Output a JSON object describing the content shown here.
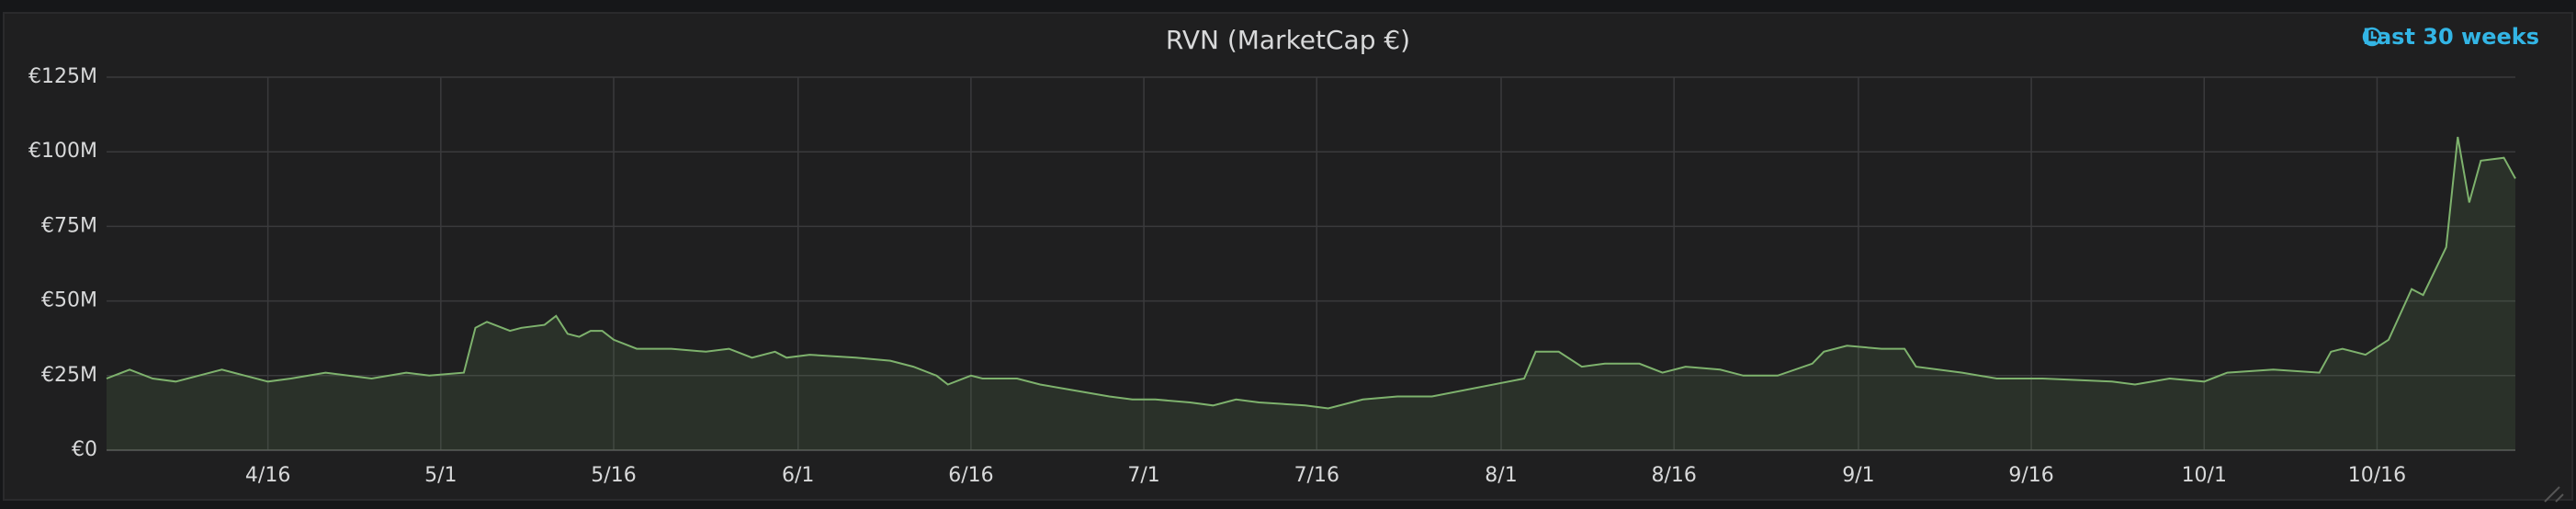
{
  "chart_data": {
    "type": "line",
    "title": "RVN (MarketCap €)",
    "time_range": "Last 30 weeks",
    "x": [
      "4/2",
      "4/4",
      "4/6",
      "4/8",
      "4/10",
      "4/12",
      "4/14",
      "4/16",
      "4/18",
      "4/21",
      "4/25",
      "4/28",
      "4/30",
      "5/3",
      "5/4",
      "5/5",
      "5/7",
      "5/8",
      "5/10",
      "5/11",
      "5/12",
      "5/13",
      "5/14",
      "5/15",
      "5/16",
      "5/18",
      "5/21",
      "5/24",
      "5/26",
      "5/28",
      "5/30",
      "5/31",
      "6/2",
      "6/6",
      "6/9",
      "6/11",
      "6/13",
      "6/14",
      "6/16",
      "6/17",
      "6/20",
      "6/22",
      "6/25",
      "6/28",
      "6/30",
      "7/2",
      "7/5",
      "7/7",
      "7/9",
      "7/11",
      "7/15",
      "7/17",
      "7/20",
      "7/23",
      "7/26",
      "8/3",
      "8/4",
      "8/6",
      "8/8",
      "8/10",
      "8/13",
      "8/15",
      "8/17",
      "8/20",
      "8/22",
      "8/25",
      "8/28",
      "8/29",
      "8/31",
      "9/3",
      "9/5",
      "9/6",
      "9/10",
      "9/13",
      "9/17",
      "9/23",
      "9/25",
      "9/28",
      "10/1",
      "10/3",
      "10/7",
      "10/11",
      "10/12",
      "10/13",
      "10/15",
      "10/17",
      "10/19",
      "10/20",
      "10/22",
      "10/23",
      "10/24",
      "10/25",
      "10/27",
      "10/28"
    ],
    "series": [
      {
        "name": "RVN",
        "color": "#7eb26d",
        "values": [
          24000000,
          27000000,
          24000000,
          23000000,
          25000000,
          27000000,
          25000000,
          23000000,
          24000000,
          26000000,
          24000000,
          26000000,
          25000000,
          26000000,
          41000000,
          43000000,
          40000000,
          41000000,
          42000000,
          45000000,
          39000000,
          38000000,
          40000000,
          40000000,
          37000000,
          34000000,
          34000000,
          33000000,
          34000000,
          31000000,
          33000000,
          31000000,
          32000000,
          31000000,
          30000000,
          28000000,
          25000000,
          22000000,
          25000000,
          24000000,
          24000000,
          22000000,
          20000000,
          18000000,
          17000000,
          17000000,
          16000000,
          15000000,
          17000000,
          16000000,
          15000000,
          14000000,
          17000000,
          18000000,
          18000000,
          24000000,
          33000000,
          33000000,
          28000000,
          29000000,
          29000000,
          26000000,
          28000000,
          27000000,
          25000000,
          25000000,
          29000000,
          33000000,
          35000000,
          34000000,
          34000000,
          28000000,
          26000000,
          24000000,
          24000000,
          23000000,
          22000000,
          24000000,
          23000000,
          26000000,
          27000000,
          26000000,
          33000000,
          34000000,
          32000000,
          37000000,
          54000000,
          52000000,
          68000000,
          105000000,
          83000000,
          97000000,
          98000000,
          91000000
        ]
      }
    ],
    "xlim": [
      "4/2",
      "10/28"
    ],
    "xticks": [
      "4/16",
      "5/1",
      "5/16",
      "6/1",
      "6/16",
      "7/1",
      "7/16",
      "8/1",
      "8/16",
      "9/1",
      "9/16",
      "10/1",
      "10/16"
    ],
    "ylim": [
      0,
      125000000
    ],
    "yticks": [
      {
        "value": 0,
        "label": "€0"
      },
      {
        "value": 25000000,
        "label": "€25M"
      },
      {
        "value": 50000000,
        "label": "€50M"
      },
      {
        "value": 75000000,
        "label": "€75M"
      },
      {
        "value": 100000000,
        "label": "€100M"
      },
      {
        "value": 125000000,
        "label": "€125M"
      }
    ],
    "grid": true
  }
}
